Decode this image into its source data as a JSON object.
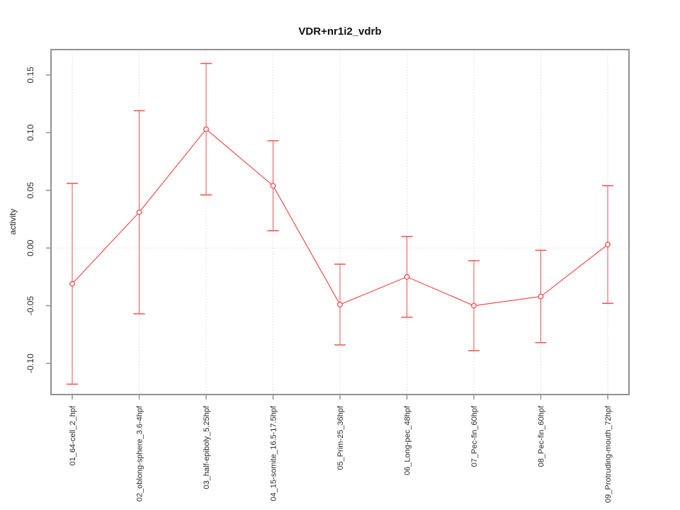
{
  "figure": {
    "background": "#ffffff"
  },
  "chart_data": {
    "type": "line",
    "title": "VDR+nr1i2_vdrb",
    "xlabel": "",
    "ylabel": "activity",
    "categories": [
      "01_64-cell_2_hpf",
      "02_oblong-sphere_3.6-4hpf",
      "03_half-epiboly_5.25hpf",
      "04_15-somite_16.5-17.5hpf",
      "05_Prim-25_36hpf",
      "06_Long-pec_48hpf",
      "07_Pec-fin_60hpf",
      "08_Pec-fin_60hpf",
      "09_Protruding-mouth_72hpf"
    ],
    "series": [
      {
        "name": "activity",
        "values": [
          -0.031,
          0.031,
          0.103,
          0.054,
          -0.049,
          -0.025,
          -0.05,
          -0.042,
          0.003
        ],
        "error_upper": [
          0.056,
          0.119,
          0.16,
          0.093,
          -0.014,
          0.01,
          -0.011,
          -0.002,
          0.054
        ],
        "error_lower": [
          -0.118,
          -0.057,
          0.046,
          0.015,
          -0.084,
          -0.06,
          -0.089,
          -0.082,
          -0.048
        ]
      }
    ],
    "ylim": [
      -0.127,
      0.172
    ],
    "yticks": [
      -0.1,
      -0.05,
      0.0,
      0.05,
      0.1,
      0.15
    ],
    "ytick_labels": [
      "-0.10",
      "-0.05",
      "0.00",
      "0.05",
      "0.10",
      "0.15"
    ],
    "grid": {
      "vertical": "dotted line at each category",
      "horizontal": "dotted line at y = 0"
    },
    "legend": "none",
    "marker": "open-circle",
    "colors": {
      "series": "#f0504c",
      "frame": "#919191",
      "grid": "#d8d8d8",
      "text": "#2b2b2b"
    }
  }
}
